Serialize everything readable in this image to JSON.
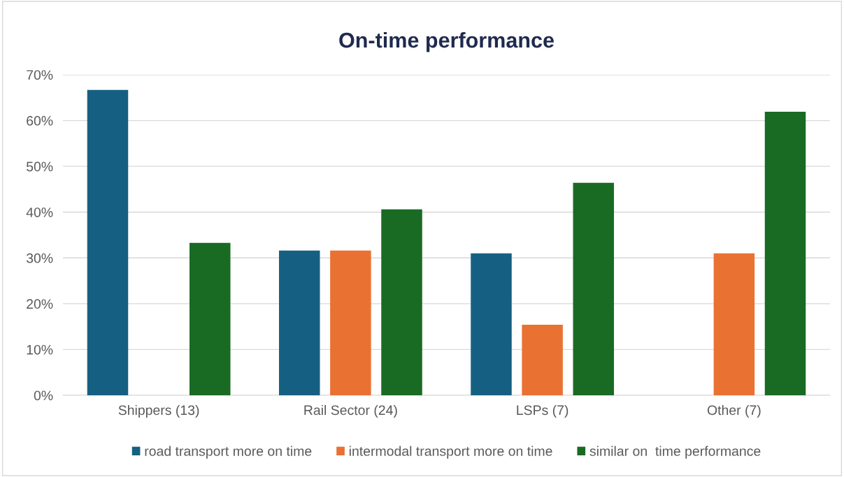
{
  "chart_data": {
    "type": "bar",
    "title": "On-time performance",
    "categories": [
      "Shippers (13)",
      "Rail Sector (24)",
      "LSPs (7)",
      "Other (7)"
    ],
    "series": [
      {
        "name": "road transport more on time",
        "color": "#156082",
        "values": [
          66.7,
          31.6,
          31,
          0
        ]
      },
      {
        "name": "intermodal transport more on time",
        "color": "#e97132",
        "values": [
          0,
          31.6,
          15.4,
          31
        ]
      },
      {
        "name": "similar on  time performance",
        "color": "#196b24",
        "values": [
          33.3,
          40.6,
          46.4,
          61.9
        ]
      }
    ],
    "ylim": [
      0,
      70
    ],
    "yticks": [
      {
        "value": 0,
        "label": "0%"
      },
      {
        "value": 10,
        "label": "10%"
      },
      {
        "value": 20,
        "label": "20%"
      },
      {
        "value": 30,
        "label": "30%"
      },
      {
        "value": 40,
        "label": "40%"
      },
      {
        "value": 50,
        "label": "50%"
      },
      {
        "value": 60,
        "label": "60%"
      },
      {
        "value": 70,
        "label": "70%"
      }
    ],
    "grid": "y",
    "legend": "bottom"
  }
}
